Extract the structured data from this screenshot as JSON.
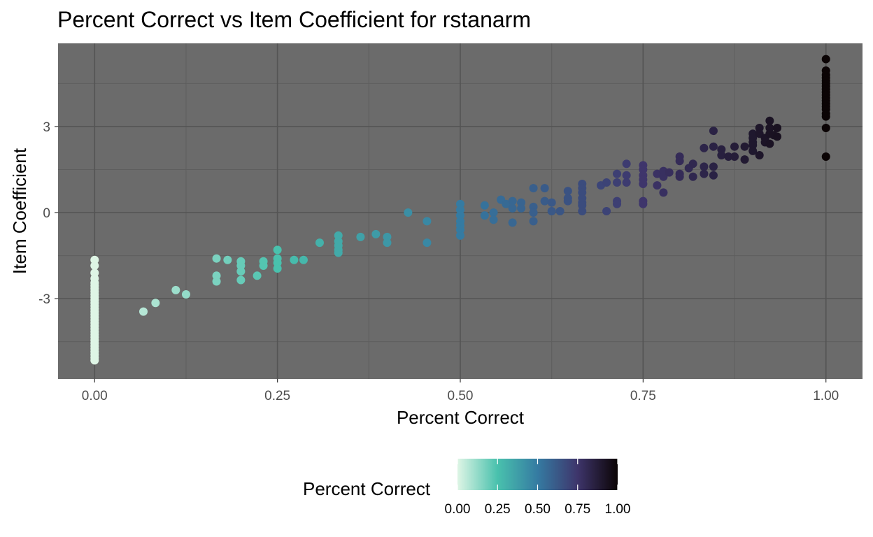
{
  "chart_data": {
    "type": "scatter",
    "title": "Percent Correct vs Item Coefficient for rstanarm",
    "xlabel": "Percent Correct",
    "ylabel": "Item Coefficient",
    "xlim": [
      -0.05,
      1.05
    ],
    "ylim": [
      -5.8,
      5.9
    ],
    "x_ticks": [
      0,
      0.25,
      0.5,
      0.75,
      1
    ],
    "x_tick_labels": [
      "0.00",
      "0.25",
      "0.50",
      "0.75",
      "1.00"
    ],
    "y_ticks": [
      -3,
      0,
      3
    ],
    "y_tick_labels": [
      "-3",
      "0",
      "3"
    ],
    "grid": true,
    "panel_background": "#6b6b6b",
    "color_variable": "Percent Correct",
    "legend": {
      "title": "Percent Correct",
      "position": "bottom",
      "tick_labels": [
        "0.00",
        "0.25",
        "0.50",
        "0.75",
        "1.00"
      ],
      "colors": [
        "#def5e5",
        "#49c1ad",
        "#357ba2",
        "#3e356b",
        "#0b0405"
      ]
    },
    "points": [
      [
        0,
        -1.65
      ],
      [
        0,
        -1.85
      ],
      [
        0,
        -2.1
      ],
      [
        0,
        -2.3
      ],
      [
        0,
        -2.45
      ],
      [
        0,
        -2.55
      ],
      [
        0,
        -2.65
      ],
      [
        0,
        -2.75
      ],
      [
        0,
        -2.85
      ],
      [
        0,
        -2.95
      ],
      [
        0,
        -3.05
      ],
      [
        0,
        -3.15
      ],
      [
        0,
        -3.25
      ],
      [
        0,
        -3.35
      ],
      [
        0,
        -3.45
      ],
      [
        0,
        -3.55
      ],
      [
        0,
        -3.65
      ],
      [
        0,
        -3.75
      ],
      [
        0,
        -3.85
      ],
      [
        0,
        -3.95
      ],
      [
        0,
        -4.05
      ],
      [
        0,
        -4.15
      ],
      [
        0,
        -4.25
      ],
      [
        0,
        -4.35
      ],
      [
        0,
        -4.45
      ],
      [
        0,
        -4.55
      ],
      [
        0,
        -4.65
      ],
      [
        0,
        -4.75
      ],
      [
        0,
        -4.85
      ],
      [
        0,
        -4.95
      ],
      [
        0,
        -5.05
      ],
      [
        0,
        -5.15
      ],
      [
        0.0667,
        -3.45
      ],
      [
        0.0833,
        -3.15
      ],
      [
        0.111,
        -2.7
      ],
      [
        0.125,
        -2.85
      ],
      [
        0.1667,
        -1.6
      ],
      [
        0.1667,
        -2.2
      ],
      [
        0.1667,
        -2.4
      ],
      [
        0.1818,
        -1.65
      ],
      [
        0.2,
        -1.7
      ],
      [
        0.2,
        -1.85
      ],
      [
        0.2,
        -2.05
      ],
      [
        0.2,
        -2.35
      ],
      [
        0.2222,
        -2.2
      ],
      [
        0.2308,
        -1.7
      ],
      [
        0.2308,
        -1.85
      ],
      [
        0.25,
        -1.3
      ],
      [
        0.25,
        -1.6
      ],
      [
        0.25,
        -1.75
      ],
      [
        0.25,
        -1.95
      ],
      [
        0.2727,
        -1.65
      ],
      [
        0.2857,
        -1.65
      ],
      [
        0.3077,
        -1.05
      ],
      [
        0.3333,
        -0.8
      ],
      [
        0.3333,
        -1.0
      ],
      [
        0.3333,
        -1.15
      ],
      [
        0.3333,
        -1.3
      ],
      [
        0.3333,
        -1.4
      ],
      [
        0.3636,
        -0.85
      ],
      [
        0.3846,
        -0.75
      ],
      [
        0.4,
        -0.85
      ],
      [
        0.4,
        -1.05
      ],
      [
        0.4286,
        0.0
      ],
      [
        0.4545,
        -0.3
      ],
      [
        0.4545,
        -1.05
      ],
      [
        0.5,
        0.3
      ],
      [
        0.5,
        0.1
      ],
      [
        0.5,
        -0.1
      ],
      [
        0.5,
        -0.3
      ],
      [
        0.5,
        -0.45
      ],
      [
        0.5,
        -0.6
      ],
      [
        0.5,
        -0.8
      ],
      [
        0.5333,
        0.25
      ],
      [
        0.5333,
        -0.1
      ],
      [
        0.5455,
        0.0
      ],
      [
        0.5455,
        -0.25
      ],
      [
        0.5556,
        0.45
      ],
      [
        0.5625,
        0.3
      ],
      [
        0.5714,
        0.4
      ],
      [
        0.5714,
        0.15
      ],
      [
        0.5714,
        -0.35
      ],
      [
        0.5833,
        0.35
      ],
      [
        0.5833,
        0.15
      ],
      [
        0.6,
        0.85
      ],
      [
        0.6,
        0.2
      ],
      [
        0.6,
        0.0
      ],
      [
        0.6,
        -0.3
      ],
      [
        0.6154,
        0.85
      ],
      [
        0.6154,
        0.4
      ],
      [
        0.625,
        0.35
      ],
      [
        0.625,
        0.05
      ],
      [
        0.6364,
        0.05
      ],
      [
        0.6471,
        0.75
      ],
      [
        0.6471,
        0.5
      ],
      [
        0.6471,
        0.4
      ],
      [
        0.6667,
        1.0
      ],
      [
        0.6667,
        0.85
      ],
      [
        0.6667,
        0.7
      ],
      [
        0.6667,
        0.5
      ],
      [
        0.6667,
        0.35
      ],
      [
        0.6667,
        0.25
      ],
      [
        0.6667,
        0.05
      ],
      [
        0.6923,
        0.95
      ],
      [
        0.7,
        1.05
      ],
      [
        0.7,
        0.05
      ],
      [
        0.7143,
        1.35
      ],
      [
        0.7143,
        1.05
      ],
      [
        0.7143,
        0.4
      ],
      [
        0.7143,
        0.3
      ],
      [
        0.7273,
        1.7
      ],
      [
        0.7273,
        1.3
      ],
      [
        0.7273,
        1.05
      ],
      [
        0.75,
        1.65
      ],
      [
        0.75,
        1.5
      ],
      [
        0.75,
        1.3
      ],
      [
        0.75,
        1.15
      ],
      [
        0.75,
        1.0
      ],
      [
        0.75,
        0.4
      ],
      [
        0.75,
        0.3
      ],
      [
        0.7692,
        1.35
      ],
      [
        0.7692,
        0.95
      ],
      [
        0.7778,
        1.45
      ],
      [
        0.7778,
        1.25
      ],
      [
        0.7778,
        0.7
      ],
      [
        0.7857,
        1.4
      ],
      [
        0.8,
        1.95
      ],
      [
        0.8,
        1.8
      ],
      [
        0.8,
        1.35
      ],
      [
        0.8,
        1.25
      ],
      [
        0.8125,
        1.55
      ],
      [
        0.8182,
        1.7
      ],
      [
        0.8182,
        1.25
      ],
      [
        0.8333,
        2.25
      ],
      [
        0.8333,
        1.6
      ],
      [
        0.8333,
        1.35
      ],
      [
        0.8462,
        2.85
      ],
      [
        0.8462,
        2.3
      ],
      [
        0.8462,
        1.6
      ],
      [
        0.8462,
        1.3
      ],
      [
        0.8571,
        2.2
      ],
      [
        0.8571,
        2.0
      ],
      [
        0.8667,
        1.95
      ],
      [
        0.875,
        2.3
      ],
      [
        0.875,
        1.95
      ],
      [
        0.8889,
        2.3
      ],
      [
        0.8889,
        1.85
      ],
      [
        0.9,
        2.75
      ],
      [
        0.9,
        2.6
      ],
      [
        0.9,
        2.45
      ],
      [
        0.9,
        2.35
      ],
      [
        0.9,
        2.15
      ],
      [
        0.9091,
        2.95
      ],
      [
        0.9091,
        2.75
      ],
      [
        0.9091,
        2.0
      ],
      [
        0.9167,
        2.6
      ],
      [
        0.9167,
        2.45
      ],
      [
        0.9231,
        3.2
      ],
      [
        0.9231,
        2.95
      ],
      [
        0.9231,
        2.75
      ],
      [
        0.9231,
        2.4
      ],
      [
        0.9286,
        2.7
      ],
      [
        0.9333,
        2.95
      ],
      [
        0.9333,
        2.65
      ],
      [
        1,
        5.35
      ],
      [
        1,
        4.95
      ],
      [
        1,
        4.8
      ],
      [
        1,
        4.7
      ],
      [
        1,
        4.6
      ],
      [
        1,
        4.5
      ],
      [
        1,
        4.4
      ],
      [
        1,
        4.3
      ],
      [
        1,
        4.2
      ],
      [
        1,
        4.1
      ],
      [
        1,
        4.0
      ],
      [
        1,
        3.9
      ],
      [
        1,
        3.8
      ],
      [
        1,
        3.7
      ],
      [
        1,
        3.6
      ],
      [
        1,
        3.45
      ],
      [
        1,
        3.35
      ],
      [
        1,
        2.95
      ],
      [
        1,
        1.95
      ]
    ]
  }
}
